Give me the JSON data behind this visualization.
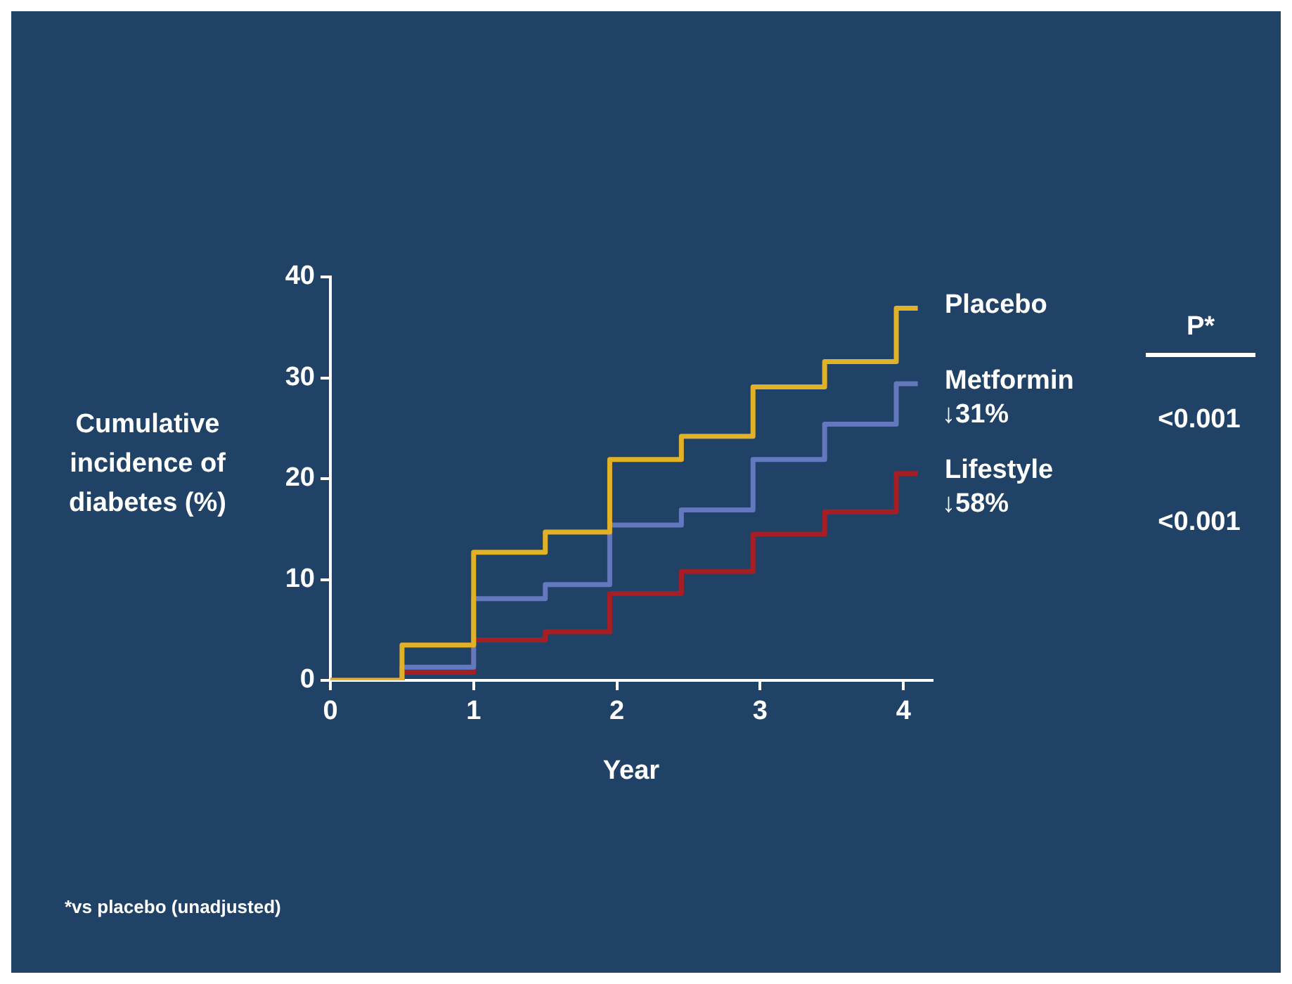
{
  "chart_data": {
    "type": "step",
    "xlabel": "Year",
    "ylabel": "Cumulative incidence of diabetes (%)",
    "x": [
      0,
      0.5,
      1,
      1.5,
      1.95,
      2.45,
      2.95,
      3.45,
      3.95,
      4.1
    ],
    "series": [
      {
        "name": "Placebo",
        "color": "#e1b128",
        "values": [
          0,
          3.5,
          12.7,
          14.7,
          21.9,
          24.2,
          29.1,
          31.6,
          36.9,
          36.9
        ]
      },
      {
        "name": "Metformin",
        "color": "#6378bd",
        "values": [
          0,
          1.3,
          8.1,
          9.5,
          15.4,
          16.9,
          21.9,
          25.4,
          29.4,
          29.4
        ]
      },
      {
        "name": "Lifestyle",
        "color": "#a61e24",
        "values": [
          0,
          0.8,
          4.0,
          4.8,
          8.6,
          10.8,
          14.5,
          16.7,
          20.5,
          20.5
        ]
      }
    ],
    "xlim": [
      0,
      4.2
    ],
    "xticks": [
      0,
      1,
      2,
      3,
      4
    ],
    "ylim": [
      0,
      40
    ],
    "yticks": [
      0,
      10,
      20,
      30,
      40
    ],
    "grid": false,
    "legend": false,
    "marker": "none",
    "line_style": "solid",
    "annotations": [
      "↓31%",
      "↓58%",
      "P*",
      "<0.001",
      "<0.001",
      "*vs placebo (unadjusted)"
    ]
  }
}
